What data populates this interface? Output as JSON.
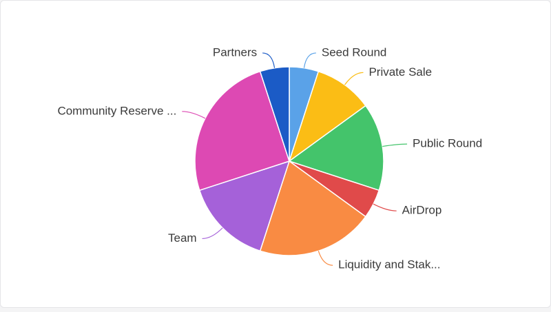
{
  "chart_data": {
    "type": "pie",
    "categories": [
      "Seed Round",
      "Private Sale",
      "Public Round",
      "AirDrop",
      "Liquidity and Stak...",
      "Team",
      "Community Reserve ...",
      "Partners"
    ],
    "values": [
      5,
      10,
      15,
      5,
      20,
      15,
      25,
      5
    ],
    "colors": [
      "#5aa2e8",
      "#fbbd15",
      "#44c46b",
      "#e04a4a",
      "#f98b43",
      "#a561d9",
      "#dd49b3",
      "#1b5bc6"
    ]
  }
}
